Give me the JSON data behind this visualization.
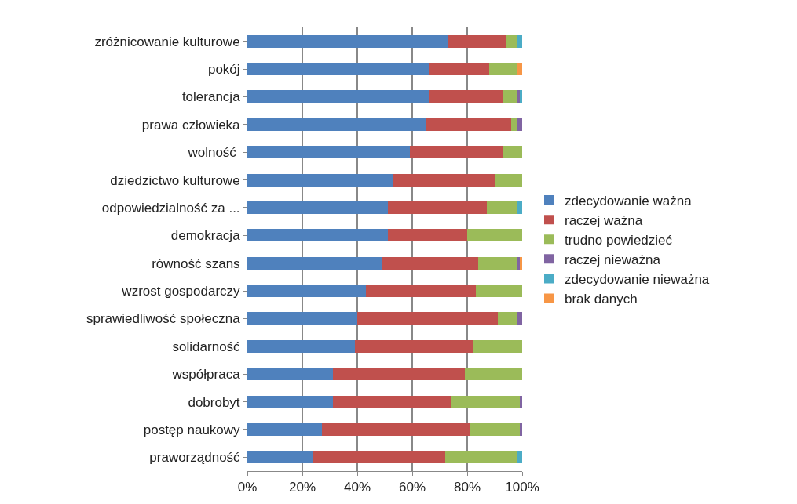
{
  "chart_data": {
    "type": "bar",
    "orientation": "horizontal",
    "stacked": true,
    "categories": [
      "zróżnicowanie kulturowe",
      "pokój",
      "tolerancja",
      "prawa człowieka",
      "wolność ",
      "dziedzictwo kulturowe",
      "odpowiedzialność za ...",
      "demokracja",
      "równość szans",
      "wzrost gospodarczy",
      "sprawiedliwość społeczna",
      "solidarność",
      "współpraca",
      "dobrobyt",
      "postęp naukowy",
      "praworządność"
    ],
    "series": [
      {
        "name": "zdecydowanie ważna",
        "color": "#4f81bd",
        "values": [
          73,
          66,
          66,
          65,
          59,
          53,
          51,
          51,
          49,
          43,
          40,
          39,
          31,
          31,
          27,
          24
        ]
      },
      {
        "name": "raczej ważna",
        "color": "#c0504d",
        "values": [
          21,
          22,
          27,
          31,
          34,
          37,
          36,
          29,
          35,
          40,
          51,
          43,
          48,
          43,
          54,
          48
        ]
      },
      {
        "name": "trudno powiedzieć",
        "color": "#9bbb59",
        "values": [
          4,
          10,
          5,
          2,
          7,
          10,
          11,
          20,
          14,
          17,
          7,
          18,
          21,
          25,
          18,
          26
        ]
      },
      {
        "name": "raczej nieważna",
        "color": "#8064a2",
        "values": [
          0,
          0,
          1,
          2,
          0,
          0,
          0,
          0,
          1,
          0,
          2,
          0,
          0,
          1,
          1,
          0
        ]
      },
      {
        "name": "zdecydowanie nieważna",
        "color": "#4bacc6",
        "values": [
          2,
          0,
          1,
          0,
          0,
          0,
          2,
          0,
          0,
          0,
          0,
          0,
          0,
          0,
          0,
          2
        ]
      },
      {
        "name": "brak danych",
        "color": "#f79646",
        "values": [
          0,
          2,
          0,
          0,
          0,
          0,
          0,
          0,
          1,
          0,
          0,
          0,
          0,
          0,
          0,
          0
        ]
      }
    ],
    "xlim": [
      0,
      100
    ],
    "xticks": [
      {
        "value": 0,
        "label": "0%"
      },
      {
        "value": 20,
        "label": "20%"
      },
      {
        "value": 40,
        "label": "40%"
      },
      {
        "value": 60,
        "label": "60%"
      },
      {
        "value": 80,
        "label": "80%"
      },
      {
        "value": 100,
        "label": "100%"
      }
    ],
    "grid": "x",
    "legend": "right"
  }
}
